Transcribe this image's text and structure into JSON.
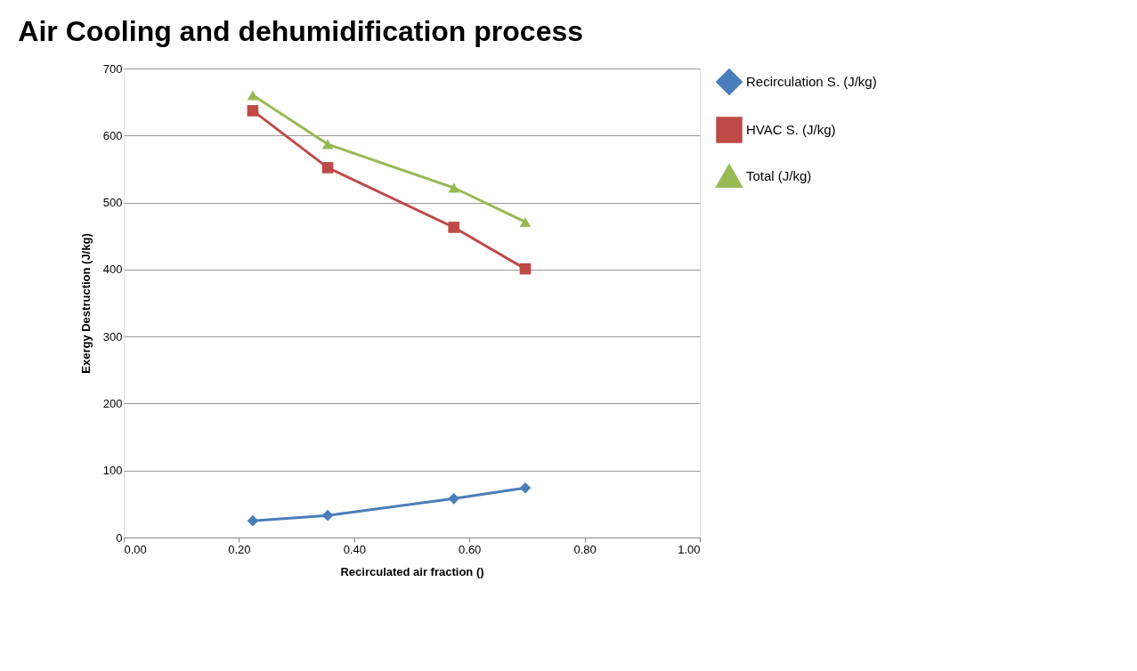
{
  "chart_data": {
    "type": "line",
    "title": "Air Cooling and dehumidification process",
    "xlabel": "Recirculated air fraction ()",
    "ylabel": "Exergy Destruction (J/kg)",
    "x": [
      0.224,
      0.354,
      0.573,
      0.697
    ],
    "series": [
      {
        "name": "Recirculation S. (J/kg)",
        "color": "#4a7ebb",
        "marker": "diamond",
        "values": [
          25,
          33,
          58,
          74
        ]
      },
      {
        "name": "HVAC S. (J/kg)",
        "color": "#be4b48",
        "marker": "square",
        "values": [
          637,
          552,
          463,
          401
        ]
      },
      {
        "name": "Total (J/kg)",
        "color": "#98b954",
        "marker": "triangle",
        "values": [
          660,
          587,
          522,
          471
        ]
      }
    ],
    "xlim": [
      0,
      1
    ],
    "xticks": [
      {
        "value": 0,
        "label": "0.00"
      },
      {
        "value": 0.2,
        "label": "0.20"
      },
      {
        "value": 0.4,
        "label": "0.40"
      },
      {
        "value": 0.6,
        "label": "0.60"
      },
      {
        "value": 0.8,
        "label": "0.80"
      },
      {
        "value": 1,
        "label": "1.00"
      }
    ],
    "ylim": [
      0,
      700
    ],
    "yticks": [
      0,
      100,
      200,
      300,
      400,
      500,
      600,
      700
    ],
    "grid": "y",
    "legend": "right",
    "line_style": "solid"
  }
}
